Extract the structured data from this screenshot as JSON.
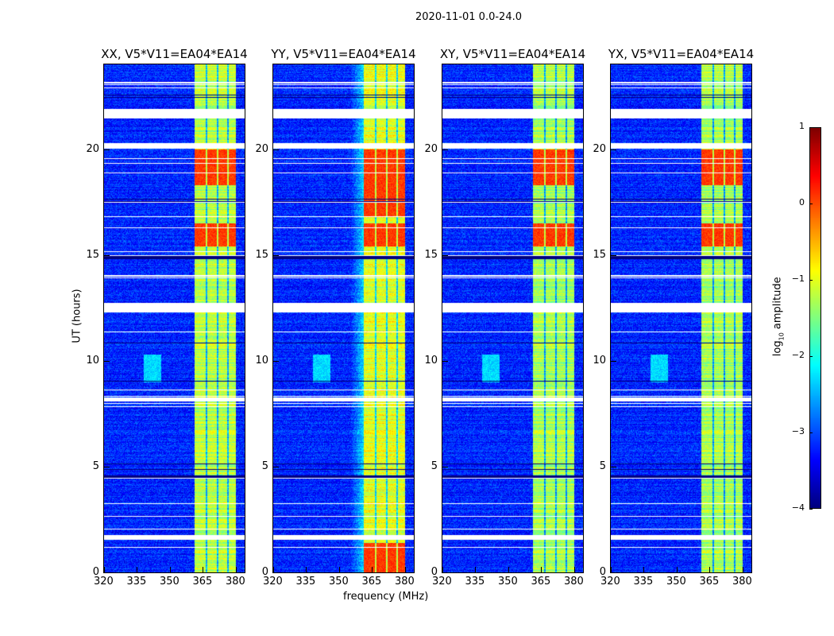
{
  "chart_data": {
    "type": "heatmap",
    "suptitle": "2020-11-01 0.0-24.0",
    "xlabel": "frequency (MHz)",
    "ylabel": "UT (hours)",
    "xlim": [
      320,
      384
    ],
    "ylim": [
      0,
      24
    ],
    "xticks": [
      "320",
      "335",
      "350",
      "365",
      "380"
    ],
    "yticks": [
      "0",
      "5",
      "10",
      "15",
      "20"
    ],
    "colormap": "jet",
    "colorbar": {
      "label_main": "log",
      "label_sub": "10",
      "label_rest": " amplitude",
      "range": [
        -4,
        1
      ],
      "ticks": [
        "1",
        "0",
        "−1",
        "−2",
        "−3",
        "−4"
      ]
    },
    "panels": [
      {
        "title": "XX, V5*V11=EA04*EA14",
        "strong_band_hours": [
          [
            15.4,
            16.5
          ],
          [
            18.3,
            20.0
          ]
        ],
        "band_level": -1.2
      },
      {
        "title": "YY, V5*V11=EA04*EA14",
        "strong_band_hours": [
          [
            0,
            1.4
          ],
          [
            15.4,
            16.5
          ],
          [
            16.8,
            20.0
          ]
        ],
        "band_level": -1.0
      },
      {
        "title": "XY, V5*V11=EA04*EA14",
        "strong_band_hours": [
          [
            15.4,
            16.5
          ],
          [
            18.3,
            20.0
          ]
        ],
        "band_level": -1.3
      },
      {
        "title": "YX, V5*V11=EA04*EA14",
        "strong_band_hours": [
          [
            15.4,
            16.5
          ],
          [
            18.3,
            20.0
          ]
        ],
        "band_level": -1.3
      }
    ],
    "background_level": -3.2,
    "band_mhz": [
      361,
      380
    ],
    "band_gaps_mhz": [
      366.5,
      371.5,
      376.2
    ],
    "flagged_hours": [
      [
        1.55,
        1.8
      ],
      [
        8.1,
        8.3
      ],
      [
        12.3,
        12.75
      ],
      [
        20.05,
        20.3
      ],
      [
        21.45,
        21.9
      ],
      [
        23.1,
        23.2
      ]
    ]
  }
}
